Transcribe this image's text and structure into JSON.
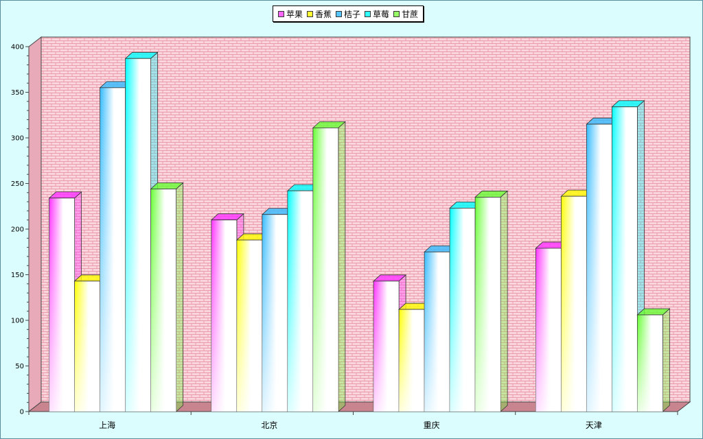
{
  "chart_data": {
    "type": "bar",
    "categories": [
      "上海",
      "北京",
      "重庆",
      "天津"
    ],
    "series": [
      {
        "name": "苹果",
        "color": "#ff33ff",
        "values": [
          234,
          210,
          143,
          179
        ]
      },
      {
        "name": "香蕉",
        "color": "#ffff00",
        "values": [
          143,
          188,
          112,
          236
        ]
      },
      {
        "name": "桔子",
        "color": "#33bbff",
        "values": [
          355,
          216,
          175,
          315
        ]
      },
      {
        "name": "草莓",
        "color": "#00ffff",
        "values": [
          387,
          242,
          223,
          334
        ]
      },
      {
        "name": "甘蔗",
        "color": "#66ff33",
        "values": [
          244,
          311,
          235,
          106
        ]
      }
    ],
    "yticks": [
      "0",
      "50",
      "100",
      "150",
      "200",
      "250",
      "300",
      "350",
      "400"
    ],
    "ylim": [
      0,
      400
    ],
    "grid": false,
    "legend_position": "top-center",
    "background_pattern": "pink-brick"
  }
}
